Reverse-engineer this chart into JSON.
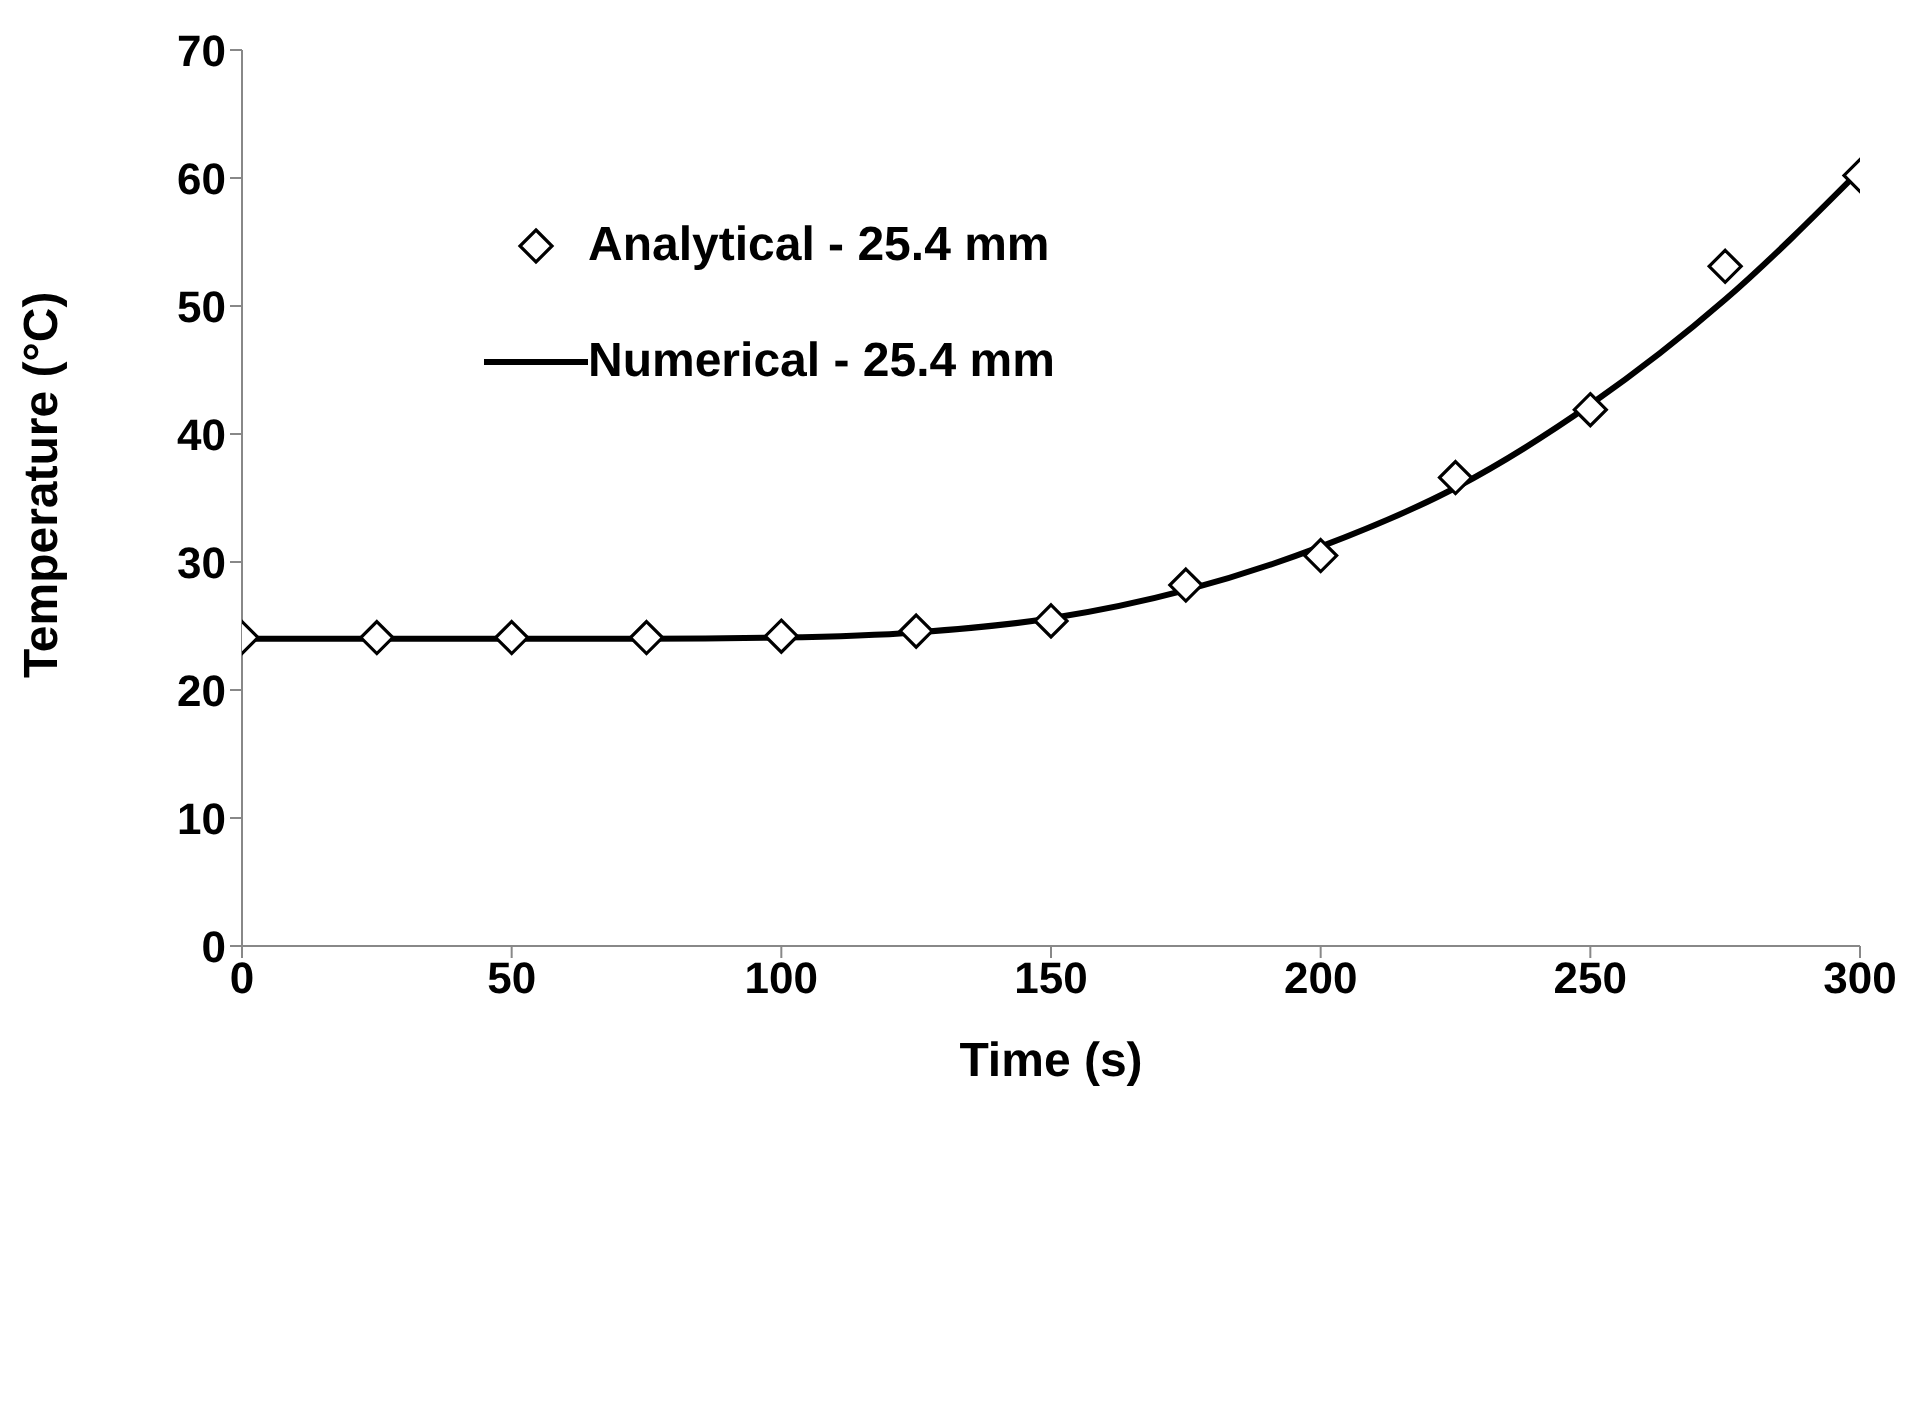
{
  "chart_data": {
    "type": "line",
    "xlabel": "Time (s)",
    "ylabel": "Temperature (°C)",
    "xlim": [
      0,
      300
    ],
    "xticks": [
      0,
      50,
      100,
      150,
      200,
      250,
      300
    ],
    "ylim": [
      0,
      70
    ],
    "yticks": [
      0,
      10,
      20,
      30,
      40,
      50,
      60,
      70
    ],
    "grid": false,
    "legend": "top left",
    "series": [
      {
        "name": "Analytical - 25.4 mm",
        "type": "scatter",
        "marker": "diamond",
        "color": "#000000",
        "x": [
          0,
          25,
          50,
          75,
          100,
          125,
          150,
          175,
          200,
          225,
          250,
          275,
          300
        ],
        "values": [
          24.1,
          24.1,
          24.1,
          24.1,
          24.2,
          24.6,
          25.4,
          28.2,
          30.5,
          36.6,
          41.9,
          53.1,
          60.2
        ]
      },
      {
        "name": "Numerical - 25.4 mm",
        "type": "line",
        "marker": "none",
        "line_style": "solid",
        "color": "#000000",
        "x": [
          0,
          25,
          50,
          75,
          100,
          125,
          150,
          175,
          200,
          225,
          250,
          275,
          300
        ],
        "values": [
          24.0,
          24.0,
          24.0,
          24.0,
          24.1,
          24.5,
          25.6,
          27.8,
          31.2,
          35.8,
          42.3,
          50.5,
          60.6
        ]
      }
    ]
  }
}
